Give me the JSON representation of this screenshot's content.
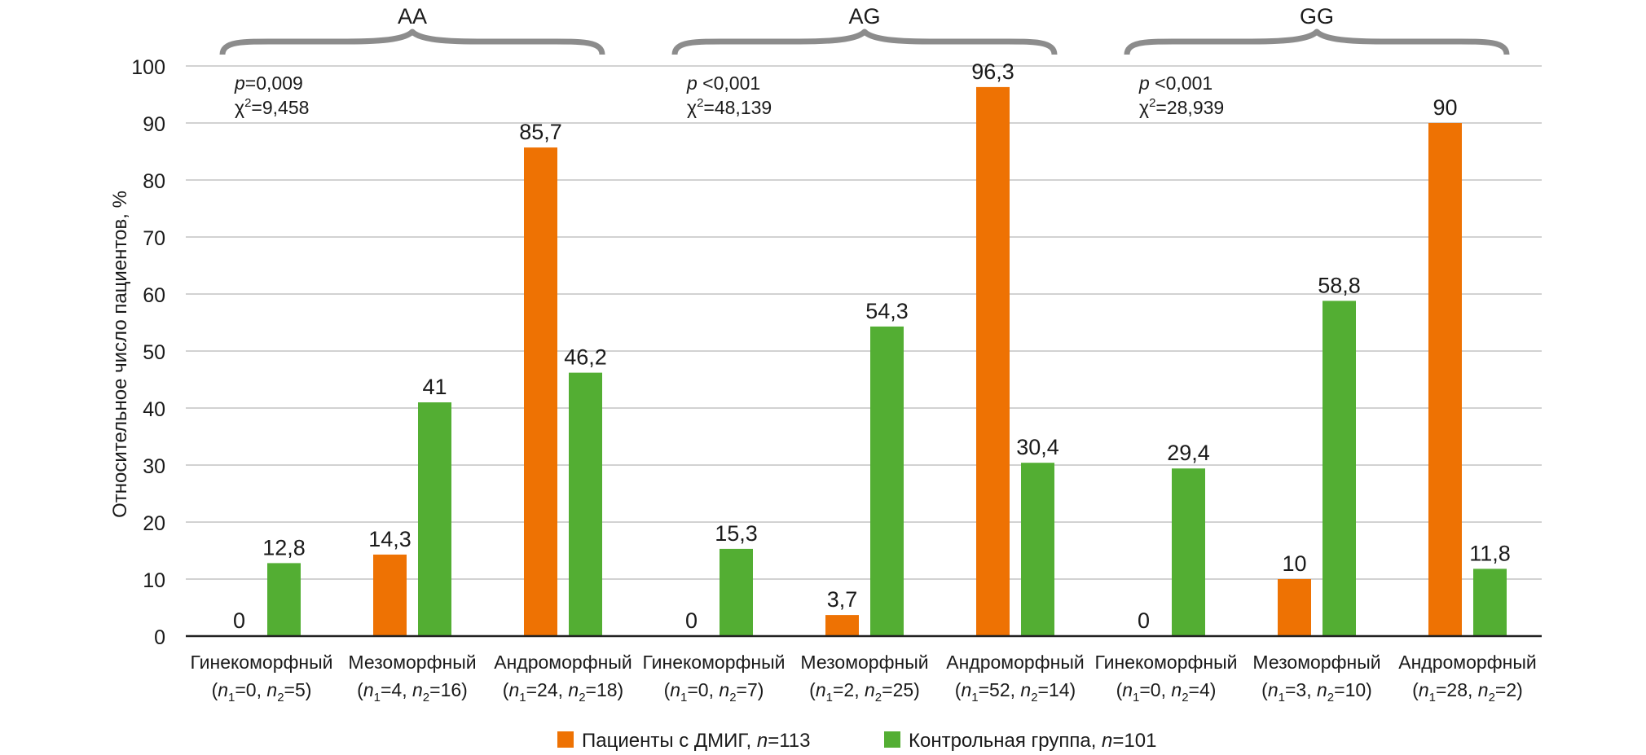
{
  "chart_data": {
    "type": "bar",
    "title": "",
    "xlabel": "",
    "ylabel": "Относительное число пациентов, %",
    "ylim": [
      0,
      100
    ],
    "yticks": [
      0,
      10,
      20,
      30,
      40,
      50,
      60,
      70,
      80,
      90,
      100
    ],
    "grid": true,
    "legend_position": "bottom-center",
    "colors": {
      "patients": "#EE7203",
      "control": "#53AE33",
      "brace": "#8C8C8C",
      "grid": "#D2D2D2"
    },
    "categories": [
      {
        "name": "Гинекоморфный",
        "n1": "0",
        "n2": "5",
        "group": "AA"
      },
      {
        "name": "Мезоморфный",
        "n1": "4",
        "n2": "16",
        "group": "AA"
      },
      {
        "name": "Андроморфный",
        "n1": "24",
        "n2": "18",
        "group": "AA"
      },
      {
        "name": "Гинекоморфный",
        "n1": "0",
        "n2": "7",
        "group": "AG"
      },
      {
        "name": "Мезоморфный",
        "n1": "2",
        "n2": "25",
        "group": "AG"
      },
      {
        "name": "Андроморфный",
        "n1": "52",
        "n2": "14",
        "group": "AG"
      },
      {
        "name": "Гинекоморфный",
        "n1": "0",
        "n2": "4",
        "group": "GG"
      },
      {
        "name": "Мезоморфный",
        "n1": "3",
        "n2": "10",
        "group": "GG"
      },
      {
        "name": "Андроморфный",
        "n1": "28",
        "n2": "2",
        "group": "GG"
      }
    ],
    "series": [
      {
        "key": "patients",
        "name_prefix": "Пациенты с ДМИГ, ",
        "n_label": "n",
        "n_value": "=113",
        "values": [
          0,
          14.3,
          85.7,
          0,
          3.7,
          96.3,
          0,
          10,
          90
        ],
        "labels": [
          "0",
          "14,3",
          "85,7",
          "0",
          "3,7",
          "96,3",
          "0",
          "10",
          "90"
        ]
      },
      {
        "key": "control",
        "name_prefix": "Контрольная группа, ",
        "n_label": "n",
        "n_value": "=101",
        "values": [
          12.8,
          41,
          46.2,
          15.3,
          54.3,
          30.4,
          29.4,
          58.8,
          11.8
        ],
        "labels": [
          "12,8",
          "41",
          "46,2",
          "15,3",
          "54,3",
          "30,4",
          "29,4",
          "58,8",
          "11,8"
        ]
      }
    ],
    "groups": [
      {
        "label": "AA",
        "p_symbol": "p",
        "p_text": "=0,009",
        "chi_symbol": "χ",
        "chi_sup": "2",
        "chi_text": "=9,458"
      },
      {
        "label": "AG",
        "p_symbol": "p",
        "p_text": " <0,001",
        "chi_symbol": "χ",
        "chi_sup": "2",
        "chi_text": "=48,139"
      },
      {
        "label": "GG",
        "p_symbol": "p",
        "p_text": " <0,001",
        "chi_symbol": "χ",
        "chi_sup": "2",
        "chi_text": "=28,939"
      }
    ]
  }
}
